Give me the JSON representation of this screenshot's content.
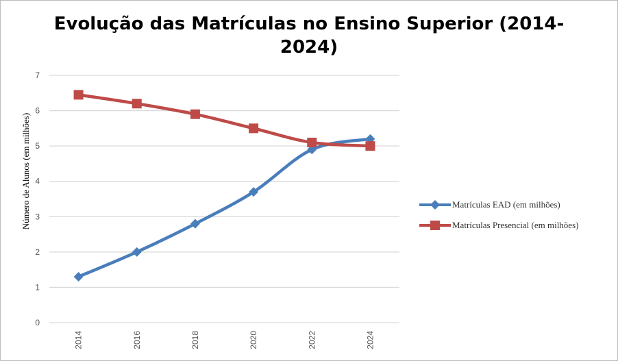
{
  "chart_data": {
    "type": "line",
    "title_line1": "Evolução das Matrículas no Ensino Superior  (2014-",
    "title_line2": "2024)",
    "xlabel": "",
    "ylabel": "Número de Alunos (em milhões)",
    "categories": [
      "2014",
      "2016",
      "2018",
      "2020",
      "2022",
      "2024"
    ],
    "ylim": [
      0,
      7
    ],
    "yticks": [
      "0",
      "1",
      "2",
      "3",
      "4",
      "5",
      "6",
      "7"
    ],
    "grid": true,
    "legend_position": "right",
    "series": [
      {
        "name": "Matrículas EAD (em milhões)",
        "values": [
          1.3,
          2.0,
          2.8,
          3.7,
          4.9,
          5.2
        ],
        "color": "#4a7ebb",
        "marker": "diamond"
      },
      {
        "name": "Matrículas Presencial (em milhões)",
        "values": [
          6.45,
          6.2,
          5.9,
          5.5,
          5.1,
          5.0
        ],
        "color": "#be4b48",
        "marker": "square"
      }
    ]
  }
}
